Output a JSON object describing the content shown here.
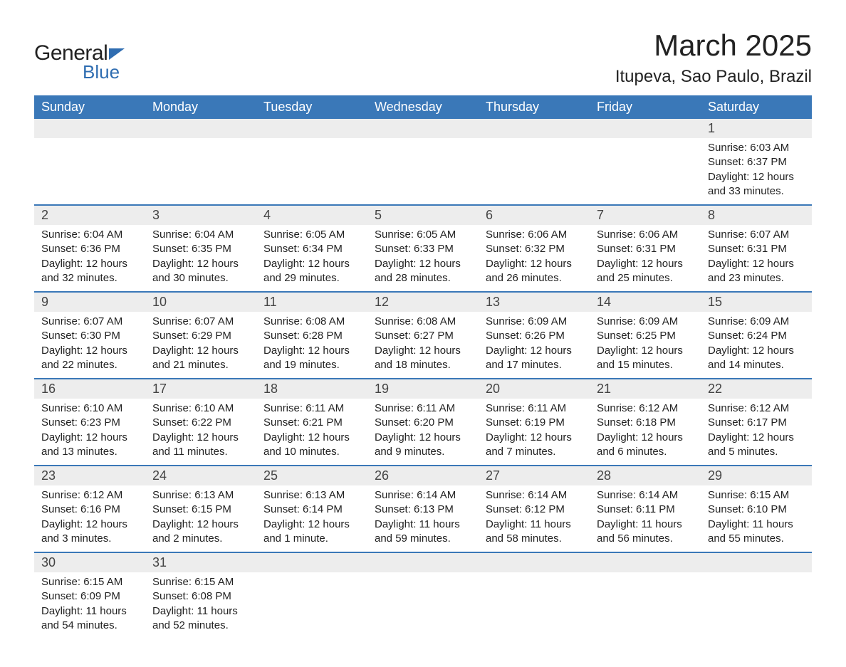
{
  "logo": {
    "text1": "General",
    "text2": "Blue"
  },
  "title": "March 2025",
  "location": "Itupeva, Sao Paulo, Brazil",
  "colors": {
    "header_bg": "#3a78b8",
    "header_text": "#ffffff",
    "daynum_bg": "#ededed",
    "border": "#3a78b8",
    "text": "#222222",
    "logo_accent": "#2f6db1"
  },
  "weekdays": [
    "Sunday",
    "Monday",
    "Tuesday",
    "Wednesday",
    "Thursday",
    "Friday",
    "Saturday"
  ],
  "weeks": [
    [
      {
        "day": ""
      },
      {
        "day": ""
      },
      {
        "day": ""
      },
      {
        "day": ""
      },
      {
        "day": ""
      },
      {
        "day": ""
      },
      {
        "day": "1",
        "sunrise": "Sunrise: 6:03 AM",
        "sunset": "Sunset: 6:37 PM",
        "dl1": "Daylight: 12 hours",
        "dl2": "and 33 minutes."
      }
    ],
    [
      {
        "day": "2",
        "sunrise": "Sunrise: 6:04 AM",
        "sunset": "Sunset: 6:36 PM",
        "dl1": "Daylight: 12 hours",
        "dl2": "and 32 minutes."
      },
      {
        "day": "3",
        "sunrise": "Sunrise: 6:04 AM",
        "sunset": "Sunset: 6:35 PM",
        "dl1": "Daylight: 12 hours",
        "dl2": "and 30 minutes."
      },
      {
        "day": "4",
        "sunrise": "Sunrise: 6:05 AM",
        "sunset": "Sunset: 6:34 PM",
        "dl1": "Daylight: 12 hours",
        "dl2": "and 29 minutes."
      },
      {
        "day": "5",
        "sunrise": "Sunrise: 6:05 AM",
        "sunset": "Sunset: 6:33 PM",
        "dl1": "Daylight: 12 hours",
        "dl2": "and 28 minutes."
      },
      {
        "day": "6",
        "sunrise": "Sunrise: 6:06 AM",
        "sunset": "Sunset: 6:32 PM",
        "dl1": "Daylight: 12 hours",
        "dl2": "and 26 minutes."
      },
      {
        "day": "7",
        "sunrise": "Sunrise: 6:06 AM",
        "sunset": "Sunset: 6:31 PM",
        "dl1": "Daylight: 12 hours",
        "dl2": "and 25 minutes."
      },
      {
        "day": "8",
        "sunrise": "Sunrise: 6:07 AM",
        "sunset": "Sunset: 6:31 PM",
        "dl1": "Daylight: 12 hours",
        "dl2": "and 23 minutes."
      }
    ],
    [
      {
        "day": "9",
        "sunrise": "Sunrise: 6:07 AM",
        "sunset": "Sunset: 6:30 PM",
        "dl1": "Daylight: 12 hours",
        "dl2": "and 22 minutes."
      },
      {
        "day": "10",
        "sunrise": "Sunrise: 6:07 AM",
        "sunset": "Sunset: 6:29 PM",
        "dl1": "Daylight: 12 hours",
        "dl2": "and 21 minutes."
      },
      {
        "day": "11",
        "sunrise": "Sunrise: 6:08 AM",
        "sunset": "Sunset: 6:28 PM",
        "dl1": "Daylight: 12 hours",
        "dl2": "and 19 minutes."
      },
      {
        "day": "12",
        "sunrise": "Sunrise: 6:08 AM",
        "sunset": "Sunset: 6:27 PM",
        "dl1": "Daylight: 12 hours",
        "dl2": "and 18 minutes."
      },
      {
        "day": "13",
        "sunrise": "Sunrise: 6:09 AM",
        "sunset": "Sunset: 6:26 PM",
        "dl1": "Daylight: 12 hours",
        "dl2": "and 17 minutes."
      },
      {
        "day": "14",
        "sunrise": "Sunrise: 6:09 AM",
        "sunset": "Sunset: 6:25 PM",
        "dl1": "Daylight: 12 hours",
        "dl2": "and 15 minutes."
      },
      {
        "day": "15",
        "sunrise": "Sunrise: 6:09 AM",
        "sunset": "Sunset: 6:24 PM",
        "dl1": "Daylight: 12 hours",
        "dl2": "and 14 minutes."
      }
    ],
    [
      {
        "day": "16",
        "sunrise": "Sunrise: 6:10 AM",
        "sunset": "Sunset: 6:23 PM",
        "dl1": "Daylight: 12 hours",
        "dl2": "and 13 minutes."
      },
      {
        "day": "17",
        "sunrise": "Sunrise: 6:10 AM",
        "sunset": "Sunset: 6:22 PM",
        "dl1": "Daylight: 12 hours",
        "dl2": "and 11 minutes."
      },
      {
        "day": "18",
        "sunrise": "Sunrise: 6:11 AM",
        "sunset": "Sunset: 6:21 PM",
        "dl1": "Daylight: 12 hours",
        "dl2": "and 10 minutes."
      },
      {
        "day": "19",
        "sunrise": "Sunrise: 6:11 AM",
        "sunset": "Sunset: 6:20 PM",
        "dl1": "Daylight: 12 hours",
        "dl2": "and 9 minutes."
      },
      {
        "day": "20",
        "sunrise": "Sunrise: 6:11 AM",
        "sunset": "Sunset: 6:19 PM",
        "dl1": "Daylight: 12 hours",
        "dl2": "and 7 minutes."
      },
      {
        "day": "21",
        "sunrise": "Sunrise: 6:12 AM",
        "sunset": "Sunset: 6:18 PM",
        "dl1": "Daylight: 12 hours",
        "dl2": "and 6 minutes."
      },
      {
        "day": "22",
        "sunrise": "Sunrise: 6:12 AM",
        "sunset": "Sunset: 6:17 PM",
        "dl1": "Daylight: 12 hours",
        "dl2": "and 5 minutes."
      }
    ],
    [
      {
        "day": "23",
        "sunrise": "Sunrise: 6:12 AM",
        "sunset": "Sunset: 6:16 PM",
        "dl1": "Daylight: 12 hours",
        "dl2": "and 3 minutes."
      },
      {
        "day": "24",
        "sunrise": "Sunrise: 6:13 AM",
        "sunset": "Sunset: 6:15 PM",
        "dl1": "Daylight: 12 hours",
        "dl2": "and 2 minutes."
      },
      {
        "day": "25",
        "sunrise": "Sunrise: 6:13 AM",
        "sunset": "Sunset: 6:14 PM",
        "dl1": "Daylight: 12 hours",
        "dl2": "and 1 minute."
      },
      {
        "day": "26",
        "sunrise": "Sunrise: 6:14 AM",
        "sunset": "Sunset: 6:13 PM",
        "dl1": "Daylight: 11 hours",
        "dl2": "and 59 minutes."
      },
      {
        "day": "27",
        "sunrise": "Sunrise: 6:14 AM",
        "sunset": "Sunset: 6:12 PM",
        "dl1": "Daylight: 11 hours",
        "dl2": "and 58 minutes."
      },
      {
        "day": "28",
        "sunrise": "Sunrise: 6:14 AM",
        "sunset": "Sunset: 6:11 PM",
        "dl1": "Daylight: 11 hours",
        "dl2": "and 56 minutes."
      },
      {
        "day": "29",
        "sunrise": "Sunrise: 6:15 AM",
        "sunset": "Sunset: 6:10 PM",
        "dl1": "Daylight: 11 hours",
        "dl2": "and 55 minutes."
      }
    ],
    [
      {
        "day": "30",
        "sunrise": "Sunrise: 6:15 AM",
        "sunset": "Sunset: 6:09 PM",
        "dl1": "Daylight: 11 hours",
        "dl2": "and 54 minutes."
      },
      {
        "day": "31",
        "sunrise": "Sunrise: 6:15 AM",
        "sunset": "Sunset: 6:08 PM",
        "dl1": "Daylight: 11 hours",
        "dl2": "and 52 minutes."
      },
      {
        "day": ""
      },
      {
        "day": ""
      },
      {
        "day": ""
      },
      {
        "day": ""
      },
      {
        "day": ""
      }
    ]
  ]
}
